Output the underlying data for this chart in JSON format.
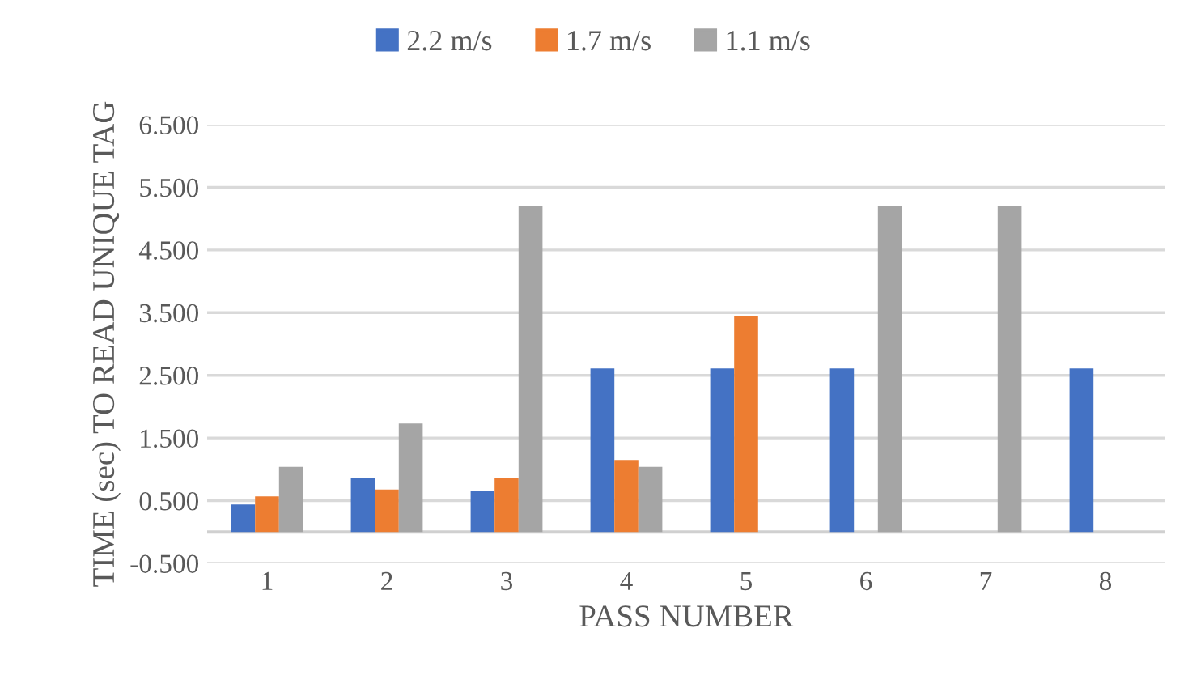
{
  "chart_data": {
    "type": "bar",
    "xlabel": "PASS NUMBER",
    "ylabel": "TIME (sec) TO READ UNIQUE TAG",
    "categories": [
      "1",
      "2",
      "3",
      "4",
      "5",
      "6",
      "7",
      "8"
    ],
    "series": [
      {
        "name": "2.2 m/s",
        "color": "#4472c4",
        "values": [
          0.44,
          0.87,
          0.65,
          2.61,
          2.61,
          2.61,
          null,
          2.61
        ]
      },
      {
        "name": "1.7 m/s",
        "color": "#ed7d31",
        "values": [
          0.57,
          0.68,
          0.86,
          1.15,
          3.45,
          null,
          null,
          null
        ]
      },
      {
        "name": "1.1 m/s",
        "color": "#a5a5a5",
        "values": [
          1.04,
          1.73,
          5.2,
          1.04,
          null,
          5.2,
          5.2,
          null
        ]
      }
    ],
    "ylim": [
      -0.5,
      6.5
    ],
    "yticks": [
      {
        "value": -0.5,
        "label": "-0.500"
      },
      {
        "value": 0.5,
        "label": "0.500"
      },
      {
        "value": 1.5,
        "label": "1.500"
      },
      {
        "value": 2.5,
        "label": "2.500"
      },
      {
        "value": 3.5,
        "label": "3.500"
      },
      {
        "value": 4.5,
        "label": "4.500"
      },
      {
        "value": 5.5,
        "label": "5.500"
      },
      {
        "value": 6.5,
        "label": "6.500"
      }
    ],
    "grid": "y",
    "legend": "top"
  }
}
